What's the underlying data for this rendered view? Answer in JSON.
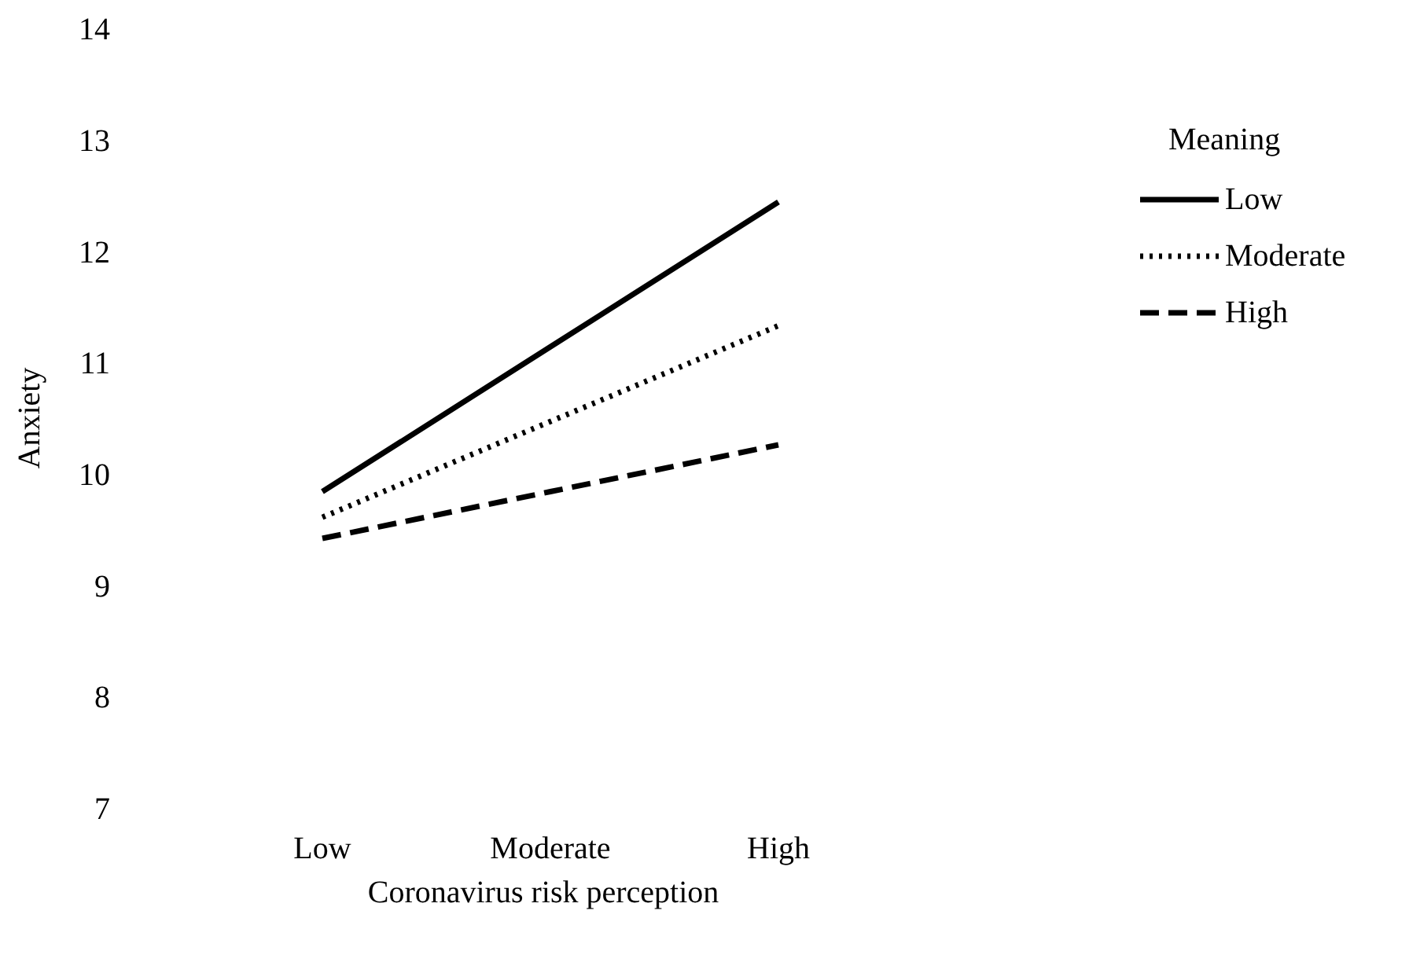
{
  "chart_data": {
    "type": "line",
    "xlabel": "Coronavirus risk perception",
    "ylabel": "Anxiety",
    "legend_title": "Meaning",
    "categories": [
      "Low",
      "Moderate",
      "High"
    ],
    "series": [
      {
        "name": "Low",
        "color": "#000000",
        "line_style": "solid",
        "values": [
          9.84,
          11.14,
          12.44
        ]
      },
      {
        "name": "Moderate",
        "color": "#000000",
        "line_style": "dotted",
        "values": [
          9.61,
          10.47,
          11.33
        ]
      },
      {
        "name": "High",
        "color": "#000000",
        "line_style": "dashed",
        "values": [
          9.42,
          9.84,
          10.26
        ]
      }
    ],
    "ylim": [
      7,
      14
    ],
    "yticks": [
      7,
      8,
      9,
      10,
      11,
      12,
      13,
      14
    ],
    "grid": false,
    "legend": "right",
    "marker": "none"
  }
}
